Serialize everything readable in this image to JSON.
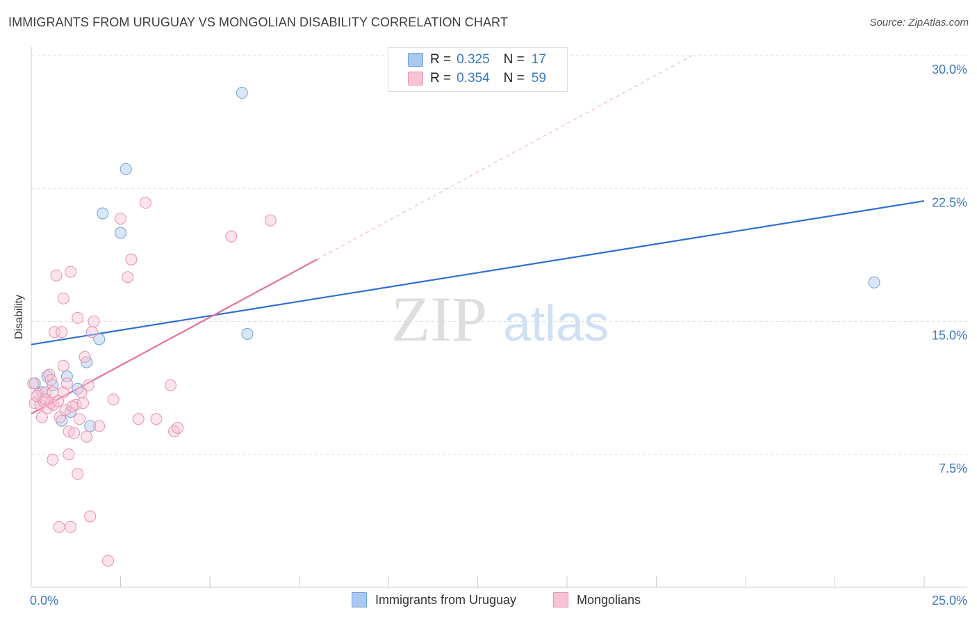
{
  "title": "IMMIGRANTS FROM URUGUAY VS MONGOLIAN DISABILITY CORRELATION CHART",
  "source": "Source: ZipAtlas.com",
  "watermark": {
    "zip": "ZIP",
    "atlas": "atlas"
  },
  "legend_top": {
    "rows": [
      {
        "r_label": "R =",
        "r_value": "0.325",
        "n_label": "N =",
        "n_value": "17",
        "color": "#aac8f0",
        "border": "#6e9fd8"
      },
      {
        "r_label": "R =",
        "r_value": "0.354",
        "n_label": "N =",
        "n_value": "59",
        "color": "#f8c4d4",
        "border": "#e890ac"
      }
    ]
  },
  "legend_bottom": [
    {
      "label": "Immigrants from Uruguay",
      "color": "#aac8f0",
      "border": "#6e9fd8"
    },
    {
      "label": "Mongolians",
      "color": "#f8c4d4",
      "border": "#e890ac"
    }
  ],
  "chart_data": {
    "type": "scatter",
    "title": "IMMIGRANTS FROM URUGUAY VS MONGOLIAN DISABILITY CORRELATION CHART",
    "xlabel": "",
    "ylabel": "Disability",
    "xlim": [
      0,
      25
    ],
    "ylim": [
      0,
      30
    ],
    "x_tick_labels": [
      {
        "value": 0,
        "label": "0.0%"
      },
      {
        "value": 25,
        "label": "25.0%"
      }
    ],
    "y_tick_labels": [
      {
        "value": 7.5,
        "label": "7.5%"
      },
      {
        "value": 15,
        "label": "15.0%"
      },
      {
        "value": 22.5,
        "label": "22.5%"
      },
      {
        "value": 30,
        "label": "30.0%"
      }
    ],
    "grid": true,
    "series": [
      {
        "name": "Immigrants from Uruguay",
        "color": "#6e9fd8",
        "fill": "rgba(170,200,240,0.45)",
        "trend_color": "#2f6fcf",
        "trend": {
          "x0": 0,
          "y0": 13.7,
          "x1": 25,
          "y1": 21.8,
          "dashed_to": null
        },
        "points": [
          {
            "x": 0.1,
            "y": 11.5
          },
          {
            "x": 0.3,
            "y": 11.0
          },
          {
            "x": 0.45,
            "y": 11.9
          },
          {
            "x": 0.6,
            "y": 11.4
          },
          {
            "x": 0.85,
            "y": 9.4
          },
          {
            "x": 1.0,
            "y": 11.9
          },
          {
            "x": 1.1,
            "y": 9.9
          },
          {
            "x": 1.3,
            "y": 11.2
          },
          {
            "x": 1.55,
            "y": 12.7
          },
          {
            "x": 1.65,
            "y": 9.1
          },
          {
            "x": 1.9,
            "y": 14.0
          },
          {
            "x": 2.0,
            "y": 21.1
          },
          {
            "x": 2.5,
            "y": 20.0
          },
          {
            "x": 2.65,
            "y": 23.6
          },
          {
            "x": 5.9,
            "y": 27.9
          },
          {
            "x": 6.05,
            "y": 14.3
          },
          {
            "x": 23.6,
            "y": 17.2
          }
        ]
      },
      {
        "name": "Mongolians",
        "color": "#e890ac",
        "fill": "rgba(248,196,212,0.45)",
        "trend_color": "#e8709a",
        "trend": {
          "x0": 0,
          "y0": 9.8,
          "x1": 8.0,
          "y1": 18.5,
          "dashed_to": {
            "x": 18.5,
            "y": 30.0
          }
        },
        "points": [
          {
            "x": 0.05,
            "y": 11.5
          },
          {
            "x": 0.1,
            "y": 10.4
          },
          {
            "x": 0.2,
            "y": 10.9
          },
          {
            "x": 0.25,
            "y": 10.3
          },
          {
            "x": 0.3,
            "y": 9.6
          },
          {
            "x": 0.35,
            "y": 10.5
          },
          {
            "x": 0.4,
            "y": 11.0
          },
          {
            "x": 0.45,
            "y": 10.1
          },
          {
            "x": 0.5,
            "y": 12.0
          },
          {
            "x": 0.55,
            "y": 10.4
          },
          {
            "x": 0.6,
            "y": 11.0
          },
          {
            "x": 0.62,
            "y": 10.3
          },
          {
            "x": 0.6,
            "y": 7.2
          },
          {
            "x": 0.65,
            "y": 14.4
          },
          {
            "x": 0.7,
            "y": 17.6
          },
          {
            "x": 0.75,
            "y": 10.5
          },
          {
            "x": 0.78,
            "y": 3.4
          },
          {
            "x": 0.8,
            "y": 9.6
          },
          {
            "x": 0.85,
            "y": 14.4
          },
          {
            "x": 0.9,
            "y": 11.0
          },
          {
            "x": 0.9,
            "y": 16.3
          },
          {
            "x": 0.9,
            "y": 12.5
          },
          {
            "x": 0.95,
            "y": 10.0
          },
          {
            "x": 1.0,
            "y": 11.5
          },
          {
            "x": 1.05,
            "y": 8.8
          },
          {
            "x": 1.05,
            "y": 7.5
          },
          {
            "x": 1.1,
            "y": 17.8
          },
          {
            "x": 1.1,
            "y": 3.4
          },
          {
            "x": 1.2,
            "y": 8.7
          },
          {
            "x": 1.25,
            "y": 10.3
          },
          {
            "x": 1.3,
            "y": 15.2
          },
          {
            "x": 1.3,
            "y": 6.4
          },
          {
            "x": 1.35,
            "y": 9.5
          },
          {
            "x": 1.4,
            "y": 11.0
          },
          {
            "x": 1.45,
            "y": 10.4
          },
          {
            "x": 1.5,
            "y": 13.0
          },
          {
            "x": 1.55,
            "y": 8.5
          },
          {
            "x": 1.6,
            "y": 11.4
          },
          {
            "x": 1.65,
            "y": 4.0
          },
          {
            "x": 1.7,
            "y": 14.4
          },
          {
            "x": 1.75,
            "y": 15.0
          },
          {
            "x": 1.9,
            "y": 9.1
          },
          {
            "x": 2.15,
            "y": 1.5
          },
          {
            "x": 2.3,
            "y": 10.6
          },
          {
            "x": 2.5,
            "y": 20.8
          },
          {
            "x": 2.7,
            "y": 17.5
          },
          {
            "x": 2.8,
            "y": 18.5
          },
          {
            "x": 3.0,
            "y": 9.5
          },
          {
            "x": 3.2,
            "y": 21.7
          },
          {
            "x": 3.5,
            "y": 9.5
          },
          {
            "x": 3.9,
            "y": 11.4
          },
          {
            "x": 4.0,
            "y": 8.8
          },
          {
            "x": 4.1,
            "y": 9.0
          },
          {
            "x": 5.6,
            "y": 19.8
          },
          {
            "x": 6.7,
            "y": 20.7
          },
          {
            "x": 0.15,
            "y": 10.8
          },
          {
            "x": 0.4,
            "y": 10.6
          },
          {
            "x": 1.15,
            "y": 10.2
          },
          {
            "x": 0.55,
            "y": 11.7
          }
        ]
      }
    ]
  }
}
